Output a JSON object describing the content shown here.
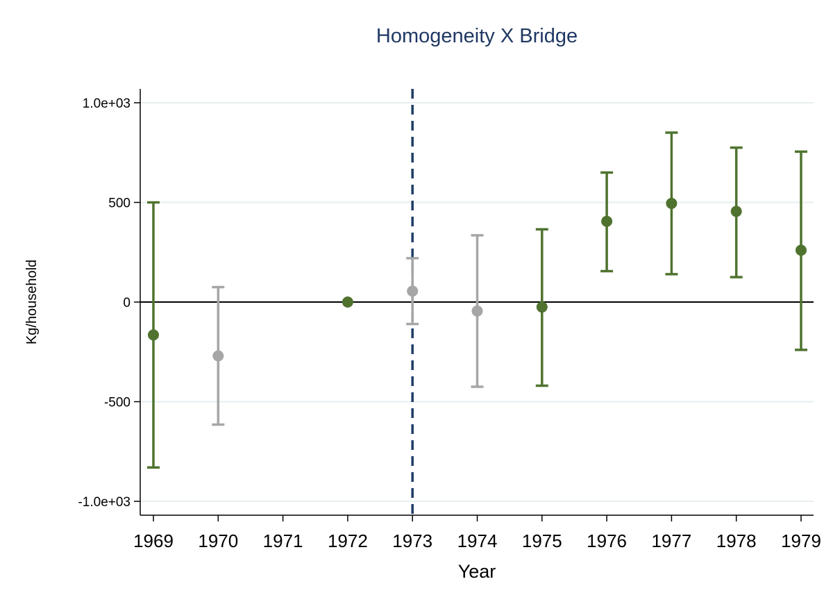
{
  "chart_data": {
    "type": "scatter",
    "title": "Homogeneity X Bridge",
    "xlabel": "Year",
    "ylabel": "Kg/household",
    "ylim": [
      -1000,
      1000
    ],
    "yticks": [
      {
        "value": 1000,
        "label": "1.0e+03"
      },
      {
        "value": 500,
        "label": "500"
      },
      {
        "value": 0,
        "label": "0"
      },
      {
        "value": -500,
        "label": "-500"
      },
      {
        "value": -1000,
        "label": "-1.0e+03"
      }
    ],
    "xticks": [
      "1969",
      "1970",
      "1971",
      "1972",
      "1973",
      "1974",
      "1975",
      "1976",
      "1977",
      "1978",
      "1979"
    ],
    "reference_year": 1973,
    "grid": true,
    "colors": {
      "significant": "#4f732f",
      "insignificant": "#a6a6a6",
      "reference_line": "#1f3d66",
      "zero_line": "#000000",
      "title": "#1f3864",
      "grid": "#e6eef0"
    },
    "points": [
      {
        "year": 1969,
        "estimate": -165,
        "lower": -830,
        "upper": 500,
        "significant": true
      },
      {
        "year": 1970,
        "estimate": -270,
        "lower": -615,
        "upper": 75,
        "significant": false
      },
      {
        "year": 1972,
        "estimate": 0,
        "lower": null,
        "upper": null,
        "significant": true
      },
      {
        "year": 1973,
        "estimate": 55,
        "lower": -110,
        "upper": 220,
        "significant": false
      },
      {
        "year": 1974,
        "estimate": -45,
        "lower": -425,
        "upper": 335,
        "significant": false
      },
      {
        "year": 1975,
        "estimate": -25,
        "lower": -420,
        "upper": 365,
        "significant": true
      },
      {
        "year": 1976,
        "estimate": 405,
        "lower": 155,
        "upper": 650,
        "significant": true
      },
      {
        "year": 1977,
        "estimate": 495,
        "lower": 140,
        "upper": 850,
        "significant": true
      },
      {
        "year": 1978,
        "estimate": 455,
        "lower": 125,
        "upper": 775,
        "significant": true
      },
      {
        "year": 1979,
        "estimate": 260,
        "lower": -240,
        "upper": 755,
        "significant": true
      }
    ]
  }
}
